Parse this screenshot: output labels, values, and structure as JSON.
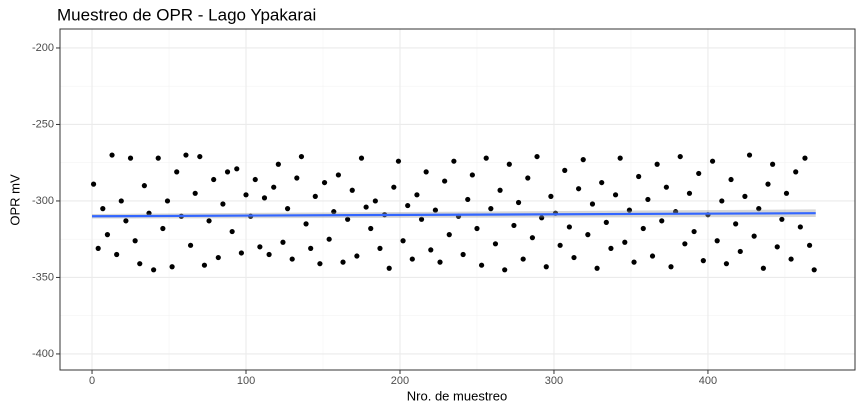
{
  "chart_data": {
    "type": "scatter",
    "title": "Muestreo de OPR - Lago Ypakarai",
    "x_label": "Nro. de muestreo",
    "y_label": "OPR mV",
    "xlim": [
      -20.8,
      495.5
    ],
    "ylim": [
      -410.5,
      -187.6
    ],
    "xticks": [
      0,
      100,
      200,
      300,
      400
    ],
    "yticks": [
      -400,
      -350,
      -300,
      -250,
      -200
    ],
    "x_minor_ticks": [
      50,
      150,
      250,
      350,
      450
    ],
    "y_minor_ticks": [
      -375,
      -325,
      -275,
      -225
    ],
    "grid": true,
    "color": "#000000",
    "x": [
      1,
      4,
      7,
      10,
      13,
      16,
      19,
      22,
      25,
      28,
      31,
      34,
      37,
      40,
      43,
      46,
      49,
      52,
      55,
      58,
      61,
      64,
      67,
      70,
      73,
      76,
      79,
      82,
      85,
      88,
      91,
      94,
      97,
      100,
      103,
      106,
      109,
      112,
      115,
      118,
      121,
      124,
      127,
      130,
      133,
      136,
      139,
      142,
      145,
      148,
      151,
      154,
      157,
      160,
      163,
      166,
      169,
      172,
      175,
      178,
      181,
      184,
      187,
      190,
      193,
      196,
      199,
      202,
      205,
      208,
      211,
      214,
      217,
      220,
      223,
      226,
      229,
      232,
      235,
      238,
      241,
      244,
      247,
      250,
      253,
      256,
      259,
      262,
      265,
      268,
      271,
      274,
      277,
      280,
      283,
      286,
      289,
      292,
      295,
      298,
      301,
      304,
      307,
      310,
      313,
      316,
      319,
      322,
      325,
      328,
      331,
      334,
      337,
      340,
      343,
      346,
      349,
      352,
      355,
      358,
      361,
      364,
      367,
      370,
      373,
      376,
      379,
      382,
      385,
      388,
      391,
      394,
      397,
      400,
      403,
      406,
      409,
      412,
      415,
      418,
      421,
      424,
      427,
      430,
      433,
      436,
      439,
      442,
      445,
      448,
      451,
      454,
      457,
      460,
      463,
      466,
      469
    ],
    "values": [
      -289,
      -331,
      -305,
      -322,
      -270,
      -335,
      -300,
      -313,
      -272,
      -326,
      -341,
      -290,
      -308,
      -345,
      -272,
      -318,
      -300,
      -343,
      -281,
      -310,
      -270,
      -329,
      -295,
      -271,
      -342,
      -313,
      -286,
      -337,
      -302,
      -281,
      -320,
      -279,
      -334,
      -296,
      -310,
      -286,
      -330,
      -298,
      -335,
      -291,
      -276,
      -327,
      -305,
      -338,
      -285,
      -271,
      -315,
      -331,
      -297,
      -341,
      -288,
      -325,
      -307,
      -283,
      -340,
      -312,
      -293,
      -336,
      -272,
      -304,
      -318,
      -300,
      -331,
      -309,
      -344,
      -291,
      -274,
      -326,
      -303,
      -338,
      -296,
      -312,
      -281,
      -332,
      -306,
      -340,
      -287,
      -322,
      -274,
      -310,
      -335,
      -299,
      -283,
      -318,
      -342,
      -272,
      -305,
      -328,
      -293,
      -345,
      -276,
      -316,
      -301,
      -338,
      -285,
      -324,
      -271,
      -311,
      -343,
      -297,
      -308,
      -329,
      -280,
      -317,
      -337,
      -292,
      -273,
      -322,
      -302,
      -344,
      -288,
      -314,
      -331,
      -296,
      -272,
      -327,
      -306,
      -340,
      -284,
      -318,
      -299,
      -336,
      -276,
      -313,
      -291,
      -343,
      -307,
      -271,
      -328,
      -295,
      -320,
      -282,
      -339,
      -309,
      -274,
      -326,
      -300,
      -341,
      -286,
      -315,
      -333,
      -297,
      -270,
      -323,
      -305,
      -344,
      -289,
      -276,
      -330,
      -312,
      -295,
      -338,
      -281,
      -317,
      -272,
      -329,
      -345
    ],
    "trend": {
      "x": [
        0,
        470
      ],
      "values": [
        -310,
        -308
      ],
      "se": [
        1.5,
        2.5
      ],
      "color": "#3366ff",
      "band_color": "#999999"
    }
  }
}
